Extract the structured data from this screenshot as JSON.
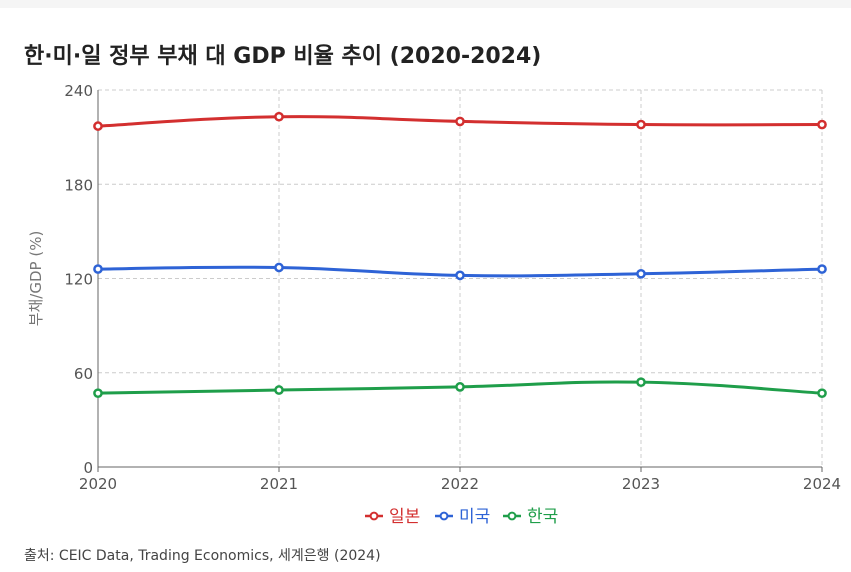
{
  "chart_data": {
    "type": "line",
    "title": "한·미·일 정부 부채 대 GDP 비율 추이 (2020-2024)",
    "ylabel": "부채/GDP (%)",
    "xlabel": "",
    "x": [
      "2020",
      "2021",
      "2022",
      "2023",
      "2024"
    ],
    "ylim": [
      0,
      240
    ],
    "yticks": [
      "0",
      "60",
      "120",
      "180",
      "240"
    ],
    "grid": true,
    "legend_position": "bottom",
    "series": [
      {
        "name": "일본",
        "color": "#d32f2f",
        "values": [
          217,
          223,
          220,
          218,
          218
        ]
      },
      {
        "name": "미국",
        "color": "#2e63d6",
        "values": [
          126,
          127,
          122,
          123,
          126
        ]
      },
      {
        "name": "한국",
        "color": "#1f9e4a",
        "values": [
          47,
          49,
          51,
          54,
          47
        ]
      }
    ]
  },
  "source": "출처: CEIC Data, Trading Economics, 세계은행 (2024)"
}
